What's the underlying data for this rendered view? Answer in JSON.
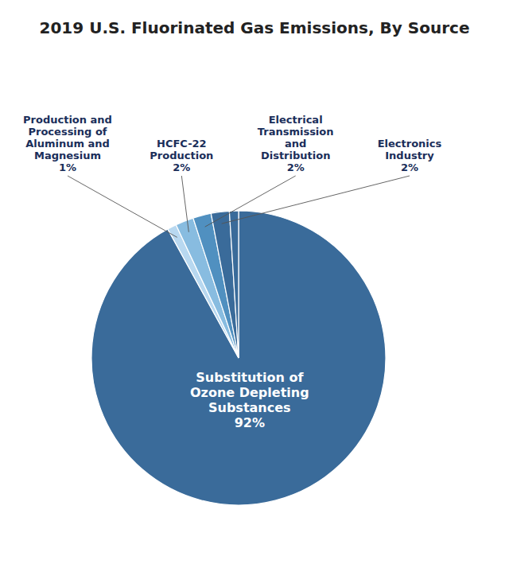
{
  "chart_data": {
    "type": "pie",
    "title": "2019 U.S. Fluorinated Gas Emissions, By Source",
    "categories": [
      "Substitution of\nOzone Depleting\nSubstances",
      "Production and\nProcessing of\nAluminum and\nMagnesium",
      "HCFC-22\nProduction",
      "Electrical\nTransmission\nand\nDistribution",
      "Electronics\nIndustry",
      null
    ],
    "values": [
      92,
      1,
      2,
      2,
      2,
      1
    ],
    "value_labels": [
      "92%",
      "1%",
      "2%",
      "2%",
      "2%",
      null
    ],
    "data_labels": true,
    "colors": [
      "#3a6b9a",
      "#b8d8f0",
      "#88bce0",
      "#5090c0",
      "#3a6b9a",
      "#3a6b9a"
    ]
  }
}
